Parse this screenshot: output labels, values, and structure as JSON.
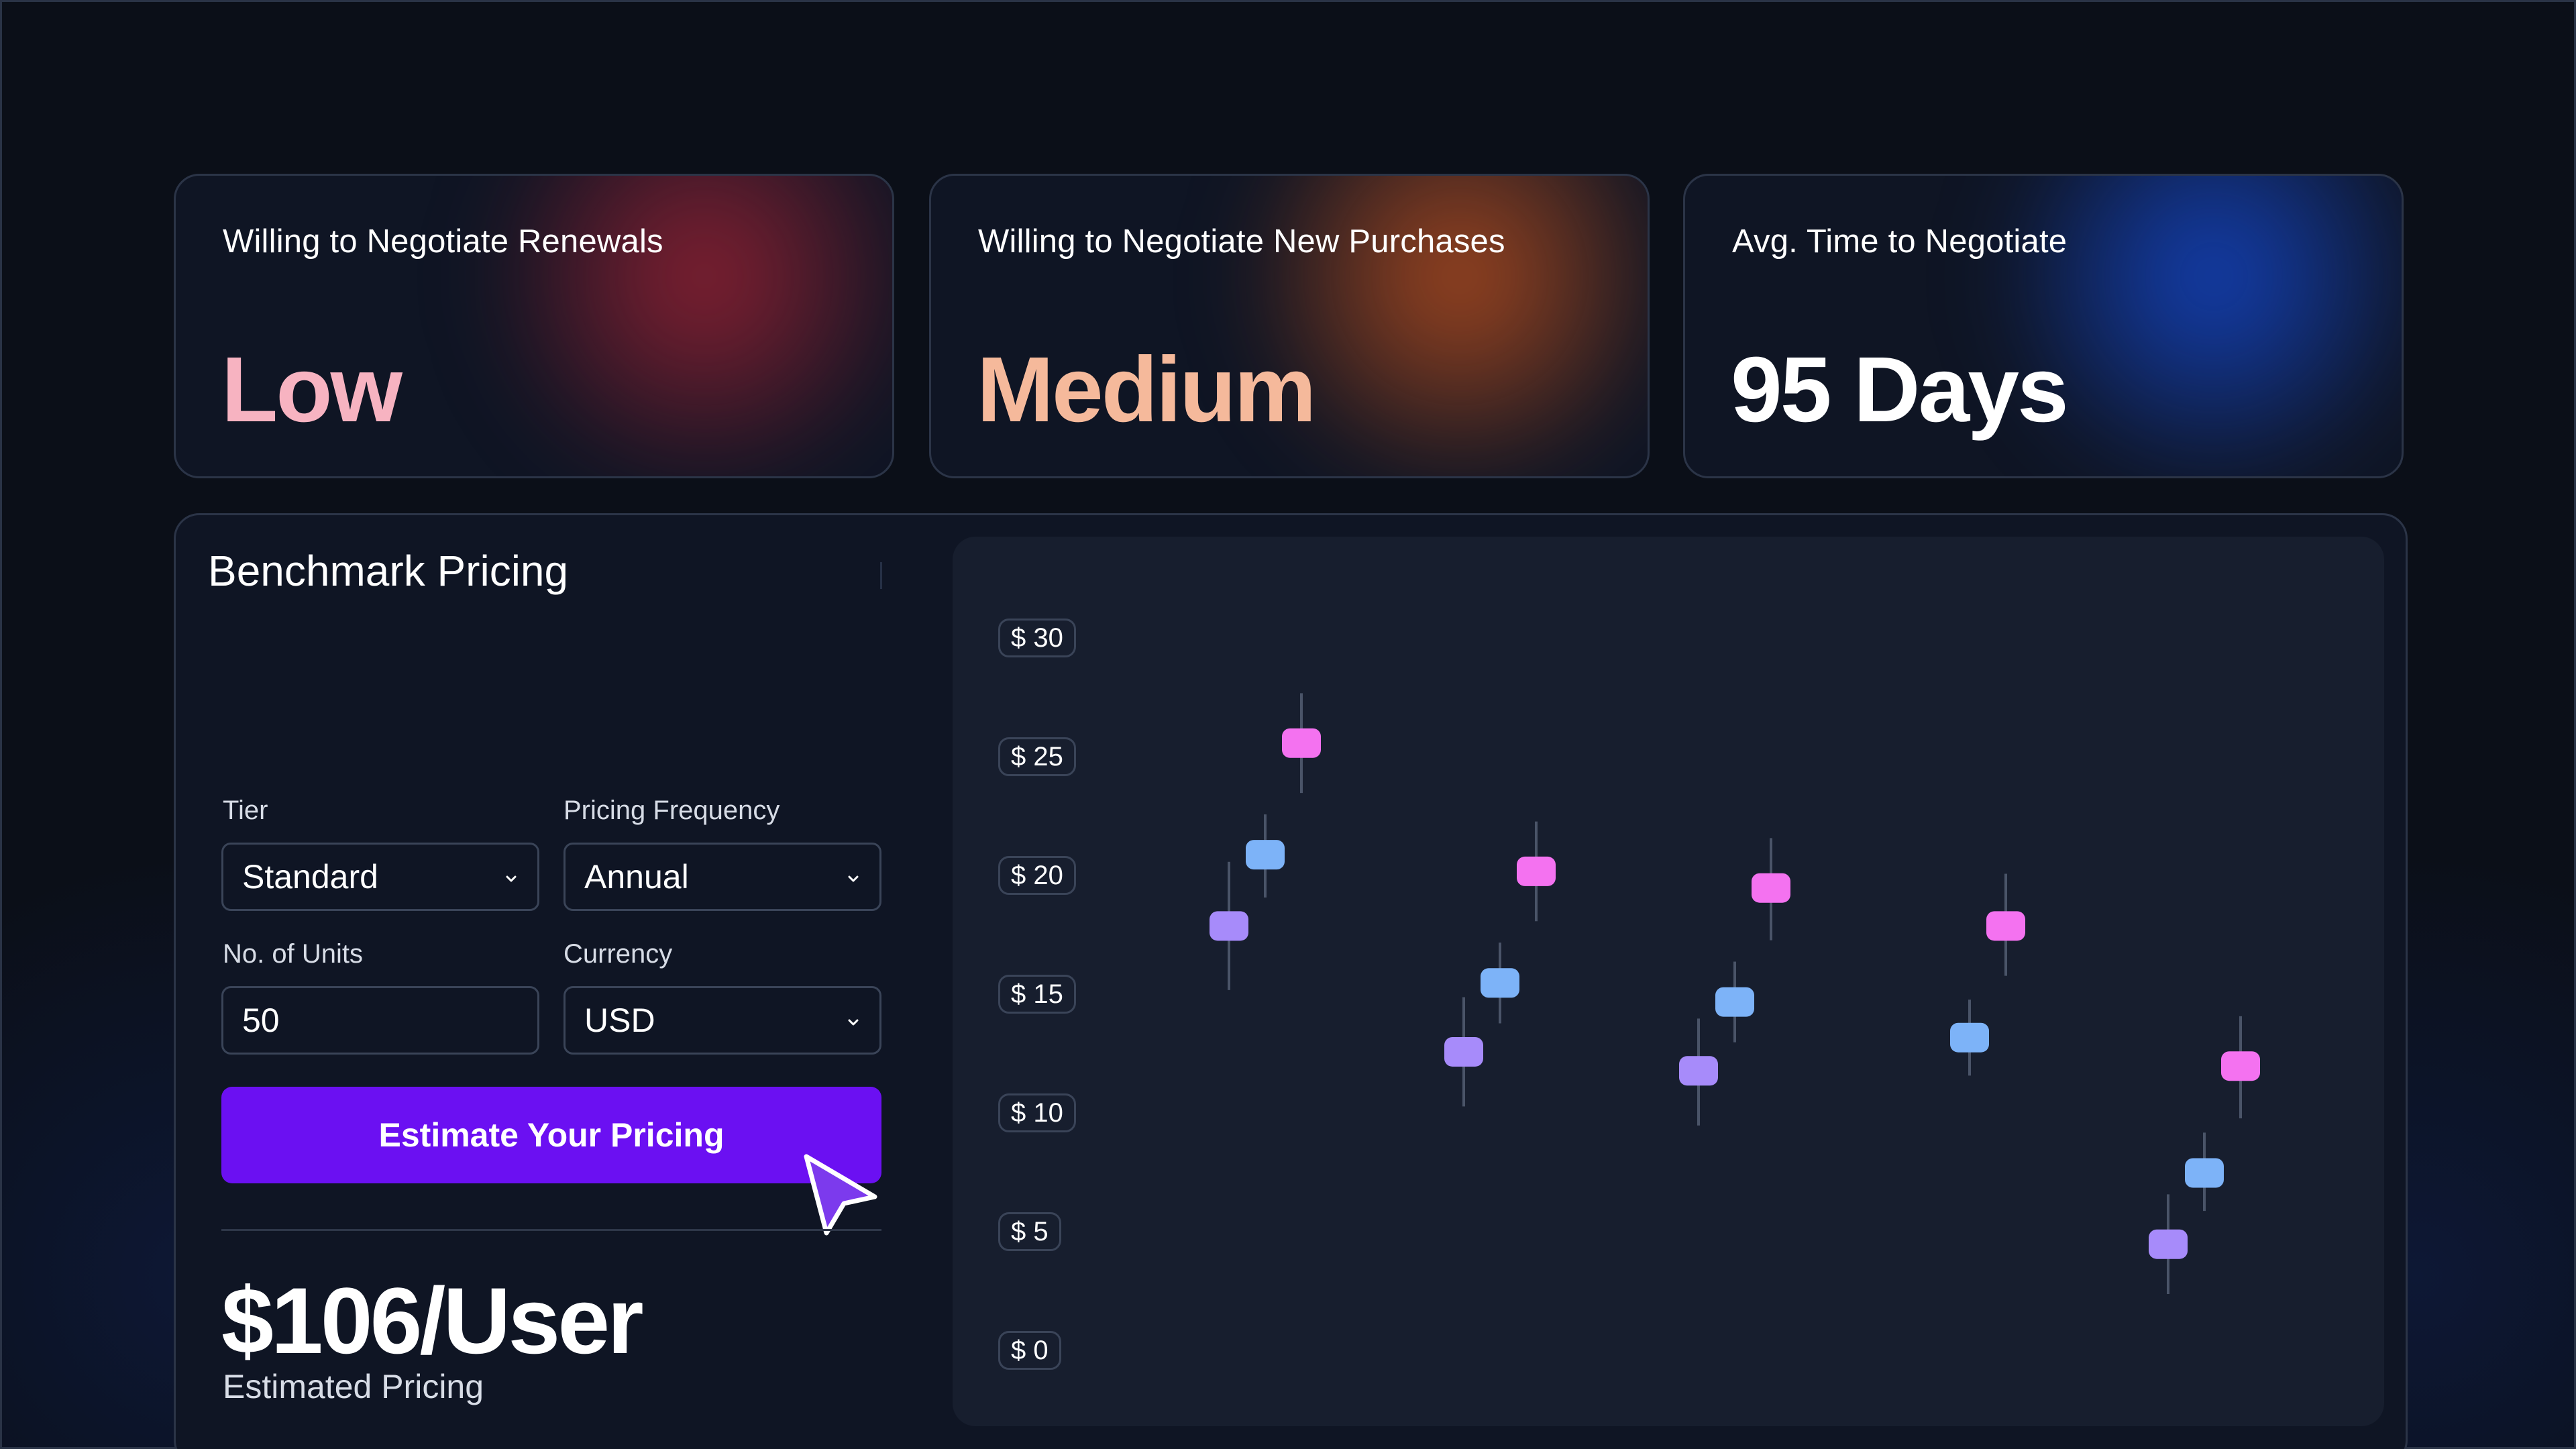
{
  "stats": [
    {
      "label": "Willing to Negotiate Renewals",
      "value": "Low"
    },
    {
      "label": "Willing to Negotiate New Purchases",
      "value": "Medium"
    },
    {
      "label": "Avg. Time to Negotiate",
      "value": "95 Days"
    }
  ],
  "benchmark": {
    "title": "Benchmark Pricing",
    "tier": {
      "label": "Tier",
      "value": "Standard"
    },
    "frequency": {
      "label": "Pricing Frequency",
      "value": "Annual"
    },
    "units": {
      "label": "No. of Units",
      "value": "50"
    },
    "currency": {
      "label": "Currency",
      "value": "USD"
    },
    "button_label": "Estimate Your Pricing",
    "price": "$106/User",
    "price_caption": "Estimated Pricing"
  },
  "colors": {
    "accent": "#6b10f2",
    "series_purple": "#a78bfa",
    "series_blue": "#7db3f8",
    "series_pink": "#f472f0"
  },
  "chart_data": {
    "type": "scatter",
    "y_tick_labels": [
      "$ 30",
      "$ 25",
      "$ 20",
      "$ 15",
      "$ 10",
      "$ 5",
      "$ 0"
    ],
    "ylim": [
      0,
      30
    ],
    "groups": [
      {
        "points": [
          {
            "color": "purple",
            "value": 17.9,
            "low": 15.2,
            "high": 20.6
          },
          {
            "color": "blue",
            "value": 20.9,
            "low": 19.1,
            "high": 22.6
          },
          {
            "color": "pink",
            "value": 25.6,
            "low": 23.5,
            "high": 27.7
          }
        ]
      },
      {
        "points": [
          {
            "color": "purple",
            "value": 12.6,
            "low": 10.3,
            "high": 14.9
          },
          {
            "color": "blue",
            "value": 15.5,
            "low": 13.8,
            "high": 17.2
          },
          {
            "color": "pink",
            "value": 20.2,
            "low": 18.1,
            "high": 22.3
          }
        ]
      },
      {
        "points": [
          {
            "color": "purple",
            "value": 11.8,
            "low": 9.5,
            "high": 14.0
          },
          {
            "color": "blue",
            "value": 14.7,
            "low": 13.0,
            "high": 16.4
          },
          {
            "color": "pink",
            "value": 19.5,
            "low": 17.3,
            "high": 21.6
          }
        ]
      },
      {
        "points": [
          {
            "color": "blue",
            "value": 13.2,
            "low": 11.6,
            "high": 14.8
          },
          {
            "color": "pink",
            "value": 17.9,
            "low": 15.8,
            "high": 20.1
          }
        ]
      },
      {
        "points": [
          {
            "color": "purple",
            "value": 4.5,
            "low": 2.4,
            "high": 6.6
          },
          {
            "color": "blue",
            "value": 7.5,
            "low": 5.9,
            "high": 9.2
          },
          {
            "color": "pink",
            "value": 12.0,
            "low": 9.8,
            "high": 14.1
          }
        ]
      }
    ]
  }
}
